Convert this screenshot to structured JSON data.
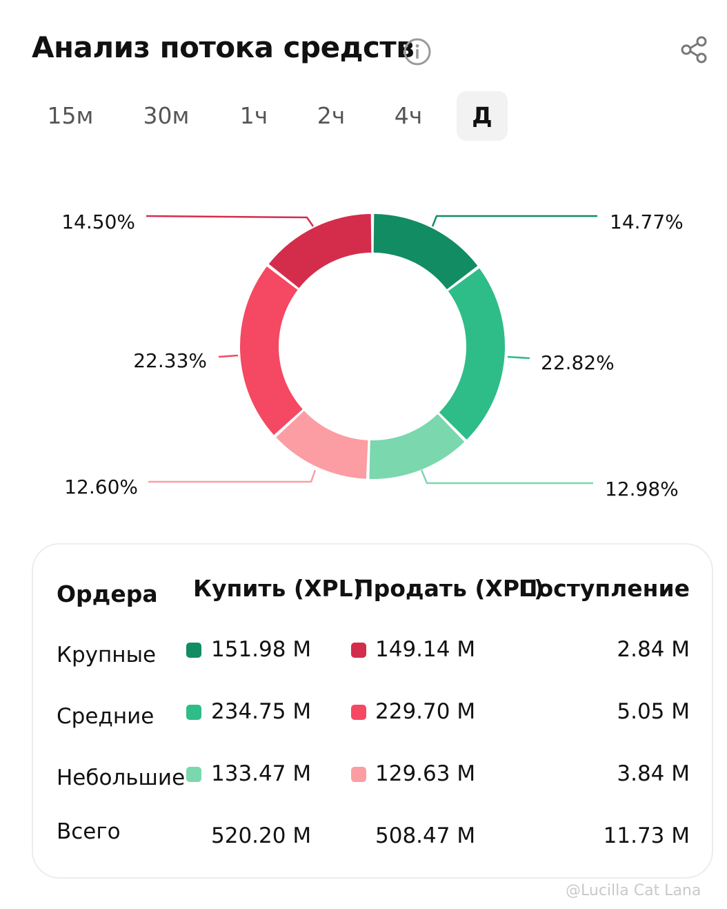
{
  "header": {
    "title": "Анализ потока средств"
  },
  "icons": {
    "info": "info-circle-icon",
    "share": "share-icon"
  },
  "tabs": [
    {
      "label": "15м",
      "active": false
    },
    {
      "label": "30м",
      "active": false
    },
    {
      "label": "1ч",
      "active": false
    },
    {
      "label": "2ч",
      "active": false
    },
    {
      "label": "4ч",
      "active": false
    },
    {
      "label": "Д",
      "active": true
    }
  ],
  "chart_data": {
    "type": "pie",
    "donut": true,
    "slices": [
      {
        "label": "14.77%",
        "value": 14.77,
        "color": "#128c62"
      },
      {
        "label": "22.82%",
        "value": 22.82,
        "color": "#2ebc88"
      },
      {
        "label": "12.98%",
        "value": 12.98,
        "color": "#7bd7ad"
      },
      {
        "label": "12.60%",
        "value": 12.6,
        "color": "#fb9da3"
      },
      {
        "label": "22.33%",
        "value": 22.33,
        "color": "#f54862"
      },
      {
        "label": "14.50%",
        "value": 14.5,
        "color": "#d42d4c"
      }
    ]
  },
  "table": {
    "headers": {
      "orders": "Ордера",
      "buy": "Купить (XPL)",
      "sell": "Продать (XPL)",
      "inflow": "Поступление"
    },
    "rows": [
      {
        "label": "Крупные",
        "buy": "151.98 M",
        "sell": "149.14 M",
        "inflow": "2.84 M",
        "buy_color": "#128c62",
        "sell_color": "#d42d4c"
      },
      {
        "label": "Средние",
        "buy": "234.75 M",
        "sell": "229.70 M",
        "inflow": "5.05 M",
        "buy_color": "#2ebc88",
        "sell_color": "#f54862"
      },
      {
        "label": "Небольшие",
        "buy": "133.47 M",
        "sell": "129.63 M",
        "inflow": "3.84 M",
        "buy_color": "#7bd7ad",
        "sell_color": "#fb9da3"
      },
      {
        "label": "Всего",
        "buy": "520.20 M",
        "sell": "508.47 M",
        "inflow": "11.73 M"
      }
    ]
  },
  "watermark": "@Lucilla Cat Lana"
}
